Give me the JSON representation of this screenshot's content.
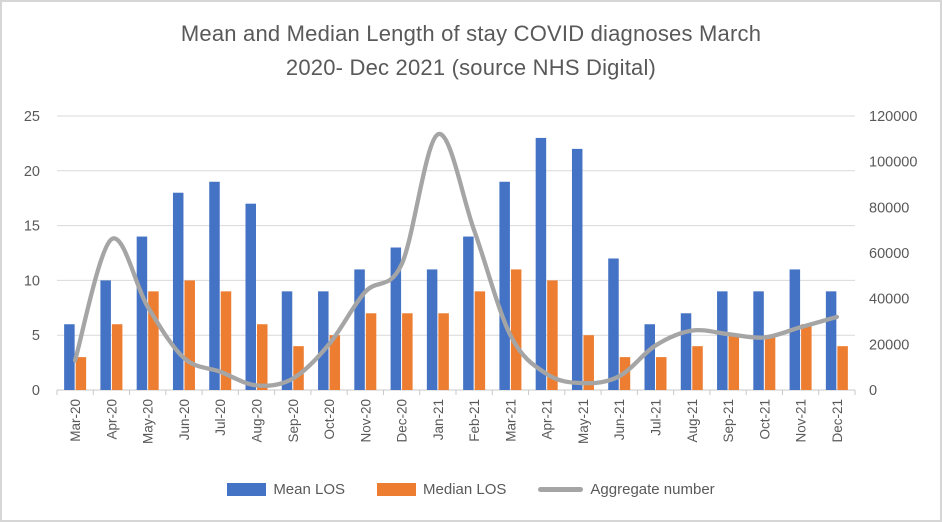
{
  "window": {
    "background": "#ffffff",
    "border_color": "#d6d6d6",
    "text_color": "#595959",
    "gridline_color": "#d9d9d9",
    "axis_line_color": "#c9c9c9"
  },
  "chart_data": {
    "type": "combo",
    "title": "Mean and Median Length of stay COVID diagnoses March 2020- Dec 2021 (source NHS Digital)",
    "title_lines": [
      "Mean and Median Length of stay COVID diagnoses March",
      "2020- Dec 2021 (source NHS Digital)"
    ],
    "categories": [
      "Mar-20",
      "Apr-20",
      "May-20",
      "Jun-20",
      "Jul-20",
      "Aug-20",
      "Sep-20",
      "Oct-20",
      "Nov-20",
      "Dec-20",
      "Jan-21",
      "Feb-21",
      "Mar-21",
      "Apr-21",
      "May-21",
      "Jun-21",
      "Jul-21",
      "Aug-21",
      "Sep-21",
      "Oct-21",
      "Nov-21",
      "Dec-21"
    ],
    "series": [
      {
        "name": "Mean LOS",
        "type": "bar",
        "axis": "left",
        "color": "#4472c4",
        "values": [
          6,
          10,
          14,
          18,
          19,
          17,
          9,
          9,
          11,
          13,
          11,
          14,
          19,
          23,
          22,
          12,
          6,
          7,
          9,
          9,
          11,
          9
        ]
      },
      {
        "name": "Median LOS",
        "type": "bar",
        "axis": "left",
        "color": "#ed7d31",
        "values": [
          3,
          6,
          9,
          10,
          9,
          6,
          4,
          5,
          7,
          7,
          7,
          9,
          11,
          10,
          5,
          3,
          3,
          4,
          5,
          5,
          6,
          4
        ]
      },
      {
        "name": "Aggregate number",
        "type": "line",
        "axis": "right",
        "color": "#a5a5a5",
        "smooth": true,
        "values": [
          13000,
          66000,
          36500,
          14000,
          8000,
          2000,
          5000,
          20000,
          43000,
          55000,
          112000,
          70000,
          24000,
          7000,
          3000,
          6000,
          19500,
          26000,
          24500,
          23000,
          27500,
          32000
        ]
      }
    ],
    "axes": {
      "left": {
        "min": 0,
        "max": 25,
        "step": 5,
        "ticks": [
          0,
          5,
          10,
          15,
          20,
          25
        ]
      },
      "right": {
        "min": 0,
        "max": 120000,
        "step": 20000,
        "ticks": [
          0,
          20000,
          40000,
          60000,
          80000,
          100000,
          120000
        ]
      }
    },
    "grid": true,
    "legend_position": "bottom"
  }
}
